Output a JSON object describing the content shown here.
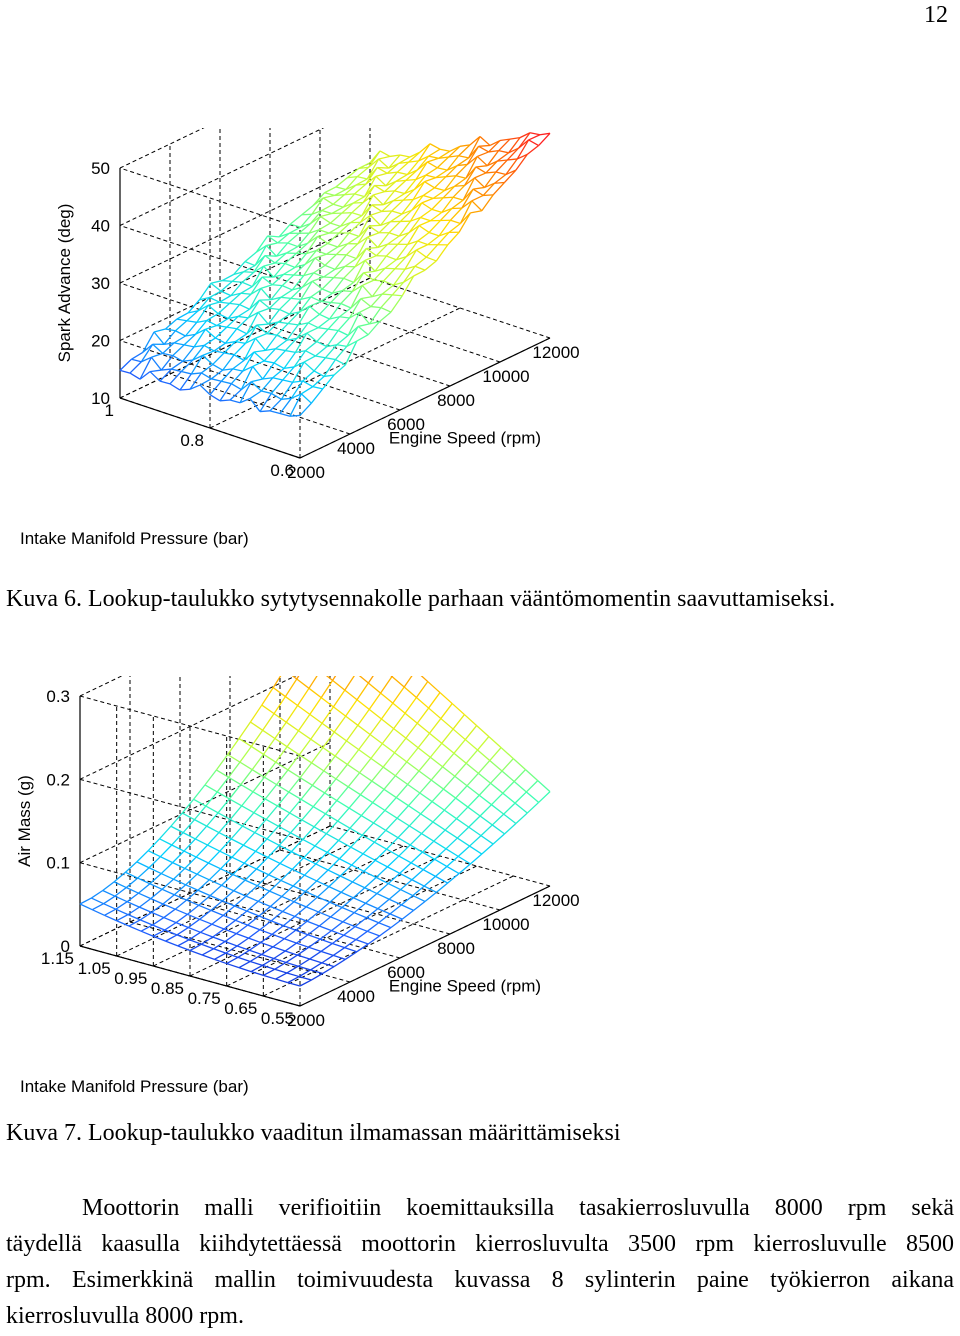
{
  "page": {
    "number": "12"
  },
  "figures": [
    {
      "id": "fig6",
      "caption": "Kuva 6. Lookup-taulukko sytytysennakolle parhaan vääntömomentin saavuttamiseksi.",
      "chart_data": {
        "type": "surface",
        "zlabel": "Spark Advance (deg)",
        "xlabel": "Engine Speed (rpm)",
        "ylabel": "Intake Manifold Pressure (bar)",
        "z_ticks": [
          "10",
          "20",
          "30",
          "40",
          "50"
        ],
        "x_ticks": [
          "2000",
          "4000",
          "6000",
          "8000",
          "10000",
          "12000"
        ],
        "y_ticks": [
          "0.6",
          "0.8",
          "1"
        ],
        "zlim": [
          10,
          50
        ],
        "xlim": [
          2000,
          12000
        ],
        "ylim": [
          0.6,
          1.0
        ],
        "colormap": [
          "#0000b0",
          "#2060ff",
          "#00d0ff",
          "#40ffb0",
          "#c0ff40",
          "#ffe000",
          "#ff8000",
          "#ff2020",
          "#c00000"
        ]
      }
    },
    {
      "id": "fig7",
      "caption": "Kuva 7. Lookup-taulukko vaaditun ilmamassan määrittämiseksi",
      "chart_data": {
        "type": "surface",
        "zlabel": "Air Mass (g)",
        "xlabel": "Engine Speed (rpm)",
        "ylabel": "Intake Manifold Pressure (bar)",
        "z_ticks": [
          "0",
          "0.1",
          "0.2",
          "0.3"
        ],
        "x_ticks": [
          "2000",
          "4000",
          "6000",
          "8000",
          "10000",
          "12000"
        ],
        "y_ticks": [
          "0.55",
          "0.65",
          "0.75",
          "0.85",
          "0.95",
          "1.05",
          "1.15"
        ],
        "zlim": [
          0,
          0.3
        ],
        "xlim": [
          2000,
          12000
        ],
        "ylim": [
          0.55,
          1.15
        ],
        "colormap": [
          "#0000b0",
          "#2060ff",
          "#00d0ff",
          "#40ffb0",
          "#c0ff40",
          "#ffe000",
          "#ff8000",
          "#ff2020",
          "#c00000"
        ]
      }
    }
  ],
  "paragraph": {
    "lines": [
      "Moottorin malli verifioitiin koemittauksilla tasakierrosluvulla 8000 rpm sekä",
      "täydellä kaasulla kiihdytettäessä moottorin kierrosluvulta 3500 rpm kierrosluvulle 8500",
      "rpm. Esimerkkinä mallin toimivuudesta kuvassa 8 sylinterin paine työkierron aikana",
      "kierrosluvulla 8000 rpm."
    ]
  }
}
